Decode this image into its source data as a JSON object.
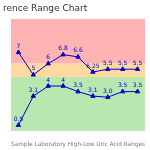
{
  "chart_data": {
    "type": "line",
    "title": "rence Range Chart",
    "xlabel": "Sample Laboratory High-Low Uric Acid Ranges",
    "categories": [
      null,
      null,
      null,
      null,
      null,
      null,
      null,
      null,
      null
    ],
    "series": [
      {
        "color": "#0000cc",
        "marker": "triangle",
        "values": [
          7,
          5,
          6,
          6.8,
          6.6,
          5.25,
          5.5,
          5.5,
          5.5
        ],
        "value_labels": [
          "7",
          "5",
          "6",
          "6.8",
          "6.6",
          "5.25",
          "5.5",
          "5.5",
          "5.5"
        ]
      },
      {
        "color": "#0000cc",
        "marker": "triangle",
        "values": [
          0.5,
          3.1,
          4,
          4,
          3.5,
          3.1,
          3.0,
          3.5,
          3.5
        ],
        "value_labels": [
          "0.5",
          "3.1",
          "4",
          "4",
          "3.5",
          "3.1",
          "3.0",
          "3.5",
          "3.5"
        ]
      }
    ],
    "zones": [
      {
        "from": 6.0,
        "to": 10,
        "color": "#ffb3b3"
      },
      {
        "from": 4.8,
        "to": 6.0,
        "color": "#ffd9a0"
      },
      {
        "from": 0,
        "to": 4.8,
        "color": "#b8e8b0"
      }
    ],
    "ylim": [
      0,
      10
    ],
    "data_labels": true,
    "tick_labels": false,
    "grid": false
  }
}
